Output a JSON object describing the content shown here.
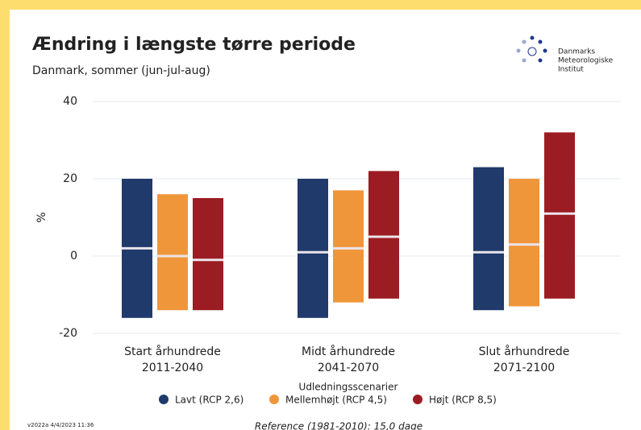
{
  "chart_data": {
    "type": "bar",
    "title": "Ændring i længste tørre periode",
    "subtitle": "Danmark, sommer (jun-jul-aug)",
    "y_label": "%",
    "logo": [
      "Danmarks",
      "Meteorologiske",
      "Institut"
    ],
    "categories": [
      [
        "Start århundrede",
        "2011-2040"
      ],
      [
        "Midt århundrede",
        "2041-2070"
      ],
      [
        "Slut århundrede",
        "2071-2100"
      ]
    ],
    "series": [
      {
        "name": "Lavt (RCP 2,6)",
        "color": "#1f3a6b",
        "low": [
          -16,
          -16,
          -14
        ],
        "high": [
          20,
          20,
          23
        ],
        "median": [
          2,
          1,
          1
        ]
      },
      {
        "name": "Mellemhøjt (RCP 4,5)",
        "color": "#f0963a",
        "low": [
          -14,
          -12,
          -13
        ],
        "high": [
          16,
          17,
          20
        ],
        "median": [
          0,
          2,
          3
        ]
      },
      {
        "name": "Højt (RCP 8,5)",
        "color": "#9b1c22",
        "low": [
          -14,
          -11,
          -11
        ],
        "high": [
          15,
          22,
          32
        ],
        "median": [
          -1,
          5,
          11
        ]
      }
    ],
    "legend_title": "Udledningsscenarier",
    "ylim": [
      -20,
      40
    ],
    "yticks": [
      -20,
      0,
      20,
      40
    ],
    "grid": true,
    "version": "v2022a 4/4/2023 11:36",
    "reference": "Reference (1981-2010): 15,0 dage"
  }
}
